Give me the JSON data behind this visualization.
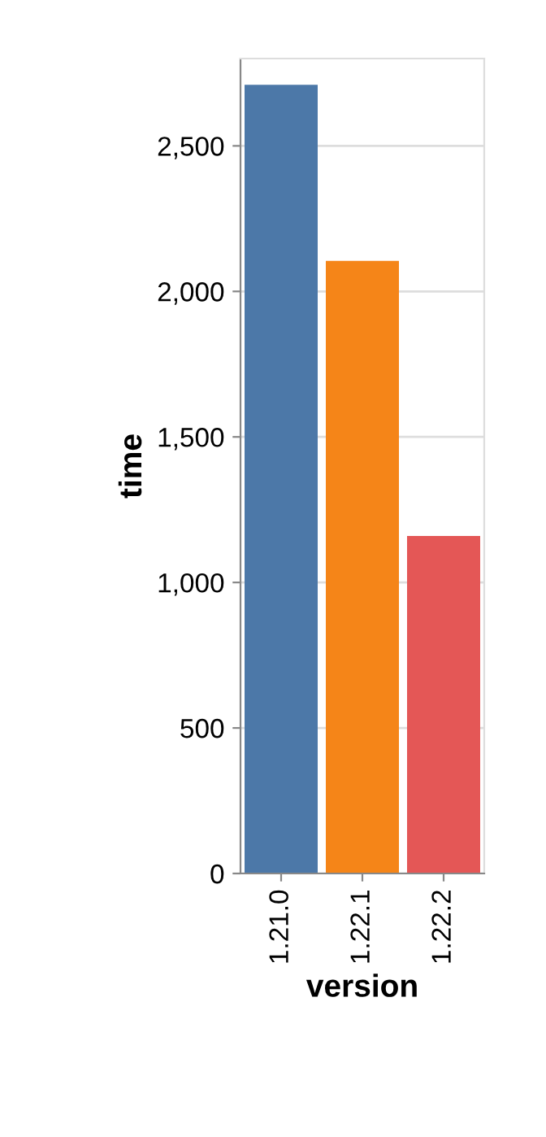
{
  "chart_data": {
    "type": "bar",
    "xlabel": "version",
    "ylabel": "time",
    "categories": [
      "1.21.0",
      "1.22.1",
      "1.22.2"
    ],
    "values": [
      2710,
      2105,
      1160
    ],
    "colors": [
      "#4c78a8",
      "#f58518",
      "#e45756"
    ],
    "ylim": [
      0,
      2800
    ],
    "yticks": [
      {
        "value": 0,
        "label": "0"
      },
      {
        "value": 500,
        "label": "500"
      },
      {
        "value": 1000,
        "label": "1,000"
      },
      {
        "value": 1500,
        "label": "1,500"
      },
      {
        "value": 2000,
        "label": "2,000"
      },
      {
        "value": 2500,
        "label": "2,500"
      }
    ],
    "grid": "y",
    "legend": false
  }
}
